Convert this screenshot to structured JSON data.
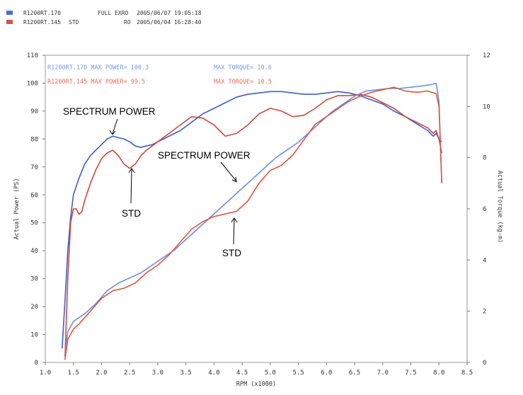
{
  "header": {
    "runs": [
      {
        "color": "#4a6fd6",
        "name": "R1200RT.170",
        "mod": "",
        "note": "FULL EXRO",
        "date": "2005/06/07 19:05:18"
      },
      {
        "color": "#e0503a",
        "name": "R1200RT.145",
        "mod": "STD",
        "note": "RO",
        "date": "2005/06/04 16:28:40"
      }
    ]
  },
  "chart_data": {
    "type": "line",
    "xlabel": "RPM (x1000)",
    "ylabel": "Actual Power (PS)",
    "y2label": "Actual Torque (kg-m)",
    "xlim": [
      1.0,
      8.5
    ],
    "ylim": [
      0,
      110
    ],
    "y2lim": [
      0,
      12
    ],
    "xticks": [
      "1.0",
      "1.5",
      "2.0",
      "2.5",
      "3.0",
      "3.5",
      "4.0",
      "4.5",
      "5.0",
      "5.5",
      "6.0",
      "6.5",
      "7.0",
      "7.5",
      "8.0",
      "8.5"
    ],
    "yticks": [
      "0",
      "10",
      "20",
      "30",
      "40",
      "50",
      "60",
      "70",
      "80",
      "90",
      "100",
      "110"
    ],
    "y2ticks": [
      "0",
      "2",
      "4",
      "6",
      "8",
      "10",
      "12"
    ],
    "grid": false,
    "legend": [
      {
        "text": "R1200RT.170  MAX POWER= 100.3",
        "torque": "MAX TORQUE= 10.6",
        "color": "#7b9ae0"
      },
      {
        "text": "R1200RT.145  MAX POWER= 99.5",
        "torque": "MAX TORQUE= 10.5",
        "color": "#e8705c"
      }
    ],
    "annotations": [
      {
        "text": "SPECTRUM POWER",
        "label": "spectrum-power-annotation-power"
      },
      {
        "text": "STD",
        "label": "std-annotation-power"
      },
      {
        "text": "SPECTRUM POWER",
        "label": "spectrum-power-annotation-torque"
      },
      {
        "text": "STD",
        "label": "std-annotation-torque"
      }
    ],
    "series": [
      {
        "name": "R1200RT.170 Power",
        "axis": "power",
        "color": "#3d5fc9",
        "points": [
          [
            1.3,
            5
          ],
          [
            1.35,
            22
          ],
          [
            1.4,
            40
          ],
          [
            1.45,
            52
          ],
          [
            1.5,
            60
          ],
          [
            1.6,
            66
          ],
          [
            1.7,
            71
          ],
          [
            1.8,
            74
          ],
          [
            1.9,
            76
          ],
          [
            2.0,
            78
          ],
          [
            2.1,
            80
          ],
          [
            2.2,
            81
          ],
          [
            2.3,
            80.5
          ],
          [
            2.4,
            80
          ],
          [
            2.5,
            79
          ],
          [
            2.6,
            77.5
          ],
          [
            2.7,
            77
          ],
          [
            2.8,
            77.5
          ],
          [
            2.9,
            78
          ],
          [
            3.0,
            79
          ],
          [
            3.2,
            81
          ],
          [
            3.4,
            83
          ],
          [
            3.6,
            86
          ],
          [
            3.8,
            89
          ],
          [
            4.0,
            91
          ],
          [
            4.2,
            93
          ],
          [
            4.4,
            95
          ],
          [
            4.6,
            96
          ],
          [
            4.8,
            96.5
          ],
          [
            5.0,
            97
          ],
          [
            5.2,
            97
          ],
          [
            5.4,
            96.5
          ],
          [
            5.6,
            96
          ],
          [
            5.8,
            96
          ],
          [
            6.0,
            96.5
          ],
          [
            6.2,
            97
          ],
          [
            6.4,
            96.5
          ],
          [
            6.6,
            95.5
          ],
          [
            6.8,
            94
          ],
          [
            7.0,
            92.5
          ],
          [
            7.2,
            90
          ],
          [
            7.4,
            88
          ],
          [
            7.6,
            85.5
          ],
          [
            7.8,
            83
          ],
          [
            7.9,
            81
          ],
          [
            7.95,
            82
          ],
          [
            8.0,
            80
          ],
          [
            8.05,
            75
          ]
        ]
      },
      {
        "name": "R1200RT.145 Power",
        "axis": "power",
        "color": "#c94a3d",
        "points": [
          [
            1.35,
            2
          ],
          [
            1.4,
            30
          ],
          [
            1.45,
            50
          ],
          [
            1.5,
            55
          ],
          [
            1.55,
            55
          ],
          [
            1.6,
            53
          ],
          [
            1.65,
            54
          ],
          [
            1.7,
            58
          ],
          [
            1.8,
            64
          ],
          [
            1.9,
            69
          ],
          [
            2.0,
            73
          ],
          [
            2.1,
            75
          ],
          [
            2.2,
            76
          ],
          [
            2.3,
            74
          ],
          [
            2.4,
            71
          ],
          [
            2.5,
            69.5
          ],
          [
            2.6,
            71
          ],
          [
            2.7,
            74
          ],
          [
            2.8,
            76
          ],
          [
            3.0,
            79
          ],
          [
            3.2,
            82
          ],
          [
            3.4,
            85
          ],
          [
            3.6,
            88
          ],
          [
            3.8,
            87.5
          ],
          [
            4.0,
            85
          ],
          [
            4.1,
            83
          ],
          [
            4.2,
            81
          ],
          [
            4.4,
            82
          ],
          [
            4.6,
            85
          ],
          [
            4.8,
            89
          ],
          [
            5.0,
            91
          ],
          [
            5.2,
            90
          ],
          [
            5.4,
            88
          ],
          [
            5.6,
            88.5
          ],
          [
            5.8,
            91
          ],
          [
            6.0,
            94
          ],
          [
            6.2,
            95.5
          ],
          [
            6.4,
            95.5
          ],
          [
            6.6,
            96
          ],
          [
            6.8,
            95
          ],
          [
            7.0,
            93
          ],
          [
            7.2,
            91
          ],
          [
            7.4,
            88
          ],
          [
            7.6,
            86
          ],
          [
            7.8,
            84
          ],
          [
            7.9,
            82
          ],
          [
            7.95,
            83
          ],
          [
            8.0,
            80
          ],
          [
            8.05,
            79
          ]
        ]
      },
      {
        "name": "R1200RT.170 Torque",
        "axis": "torque",
        "color": "#6f8fdb",
        "points": [
          [
            1.35,
            0.3
          ],
          [
            1.4,
            1.2
          ],
          [
            1.5,
            1.6
          ],
          [
            1.7,
            1.9
          ],
          [
            1.9,
            2.3
          ],
          [
            2.1,
            2.8
          ],
          [
            2.3,
            3.1
          ],
          [
            2.5,
            3.3
          ],
          [
            2.7,
            3.5
          ],
          [
            2.9,
            3.8
          ],
          [
            3.1,
            4.1
          ],
          [
            3.3,
            4.4
          ],
          [
            3.5,
            4.8
          ],
          [
            3.7,
            5.2
          ],
          [
            3.9,
            5.6
          ],
          [
            4.1,
            6.0
          ],
          [
            4.3,
            6.4
          ],
          [
            4.5,
            6.8
          ],
          [
            4.7,
            7.2
          ],
          [
            4.9,
            7.6
          ],
          [
            5.1,
            8.0
          ],
          [
            5.3,
            8.3
          ],
          [
            5.5,
            8.6
          ],
          [
            5.7,
            9.0
          ],
          [
            5.9,
            9.4
          ],
          [
            6.1,
            9.8
          ],
          [
            6.3,
            10.1
          ],
          [
            6.5,
            10.4
          ],
          [
            6.7,
            10.6
          ],
          [
            6.9,
            10.65
          ],
          [
            7.1,
            10.7
          ],
          [
            7.3,
            10.7
          ],
          [
            7.5,
            10.75
          ],
          [
            7.7,
            10.8
          ],
          [
            7.85,
            10.85
          ],
          [
            7.95,
            10.9
          ],
          [
            8.0,
            10.2
          ],
          [
            8.05,
            7.0
          ]
        ]
      },
      {
        "name": "R1200RT.145 Torque",
        "axis": "torque",
        "color": "#e0563f",
        "points": [
          [
            1.35,
            0.1
          ],
          [
            1.4,
            0.9
          ],
          [
            1.5,
            1.3
          ],
          [
            1.6,
            1.5
          ],
          [
            1.8,
            2.0
          ],
          [
            2.0,
            2.5
          ],
          [
            2.2,
            2.8
          ],
          [
            2.4,
            2.9
          ],
          [
            2.6,
            3.1
          ],
          [
            2.8,
            3.5
          ],
          [
            3.0,
            3.8
          ],
          [
            3.2,
            4.2
          ],
          [
            3.4,
            4.7
          ],
          [
            3.6,
            5.2
          ],
          [
            3.8,
            5.5
          ],
          [
            4.0,
            5.7
          ],
          [
            4.2,
            5.8
          ],
          [
            4.4,
            5.9
          ],
          [
            4.6,
            6.3
          ],
          [
            4.8,
            7.0
          ],
          [
            5.0,
            7.5
          ],
          [
            5.2,
            7.7
          ],
          [
            5.4,
            8.1
          ],
          [
            5.6,
            8.7
          ],
          [
            5.8,
            9.3
          ],
          [
            6.0,
            9.6
          ],
          [
            6.2,
            9.9
          ],
          [
            6.4,
            10.2
          ],
          [
            6.6,
            10.4
          ],
          [
            6.8,
            10.55
          ],
          [
            7.0,
            10.65
          ],
          [
            7.2,
            10.75
          ],
          [
            7.4,
            10.6
          ],
          [
            7.6,
            10.55
          ],
          [
            7.8,
            10.6
          ],
          [
            7.95,
            10.5
          ],
          [
            8.0,
            10.0
          ],
          [
            8.05,
            7.0
          ]
        ]
      }
    ]
  }
}
